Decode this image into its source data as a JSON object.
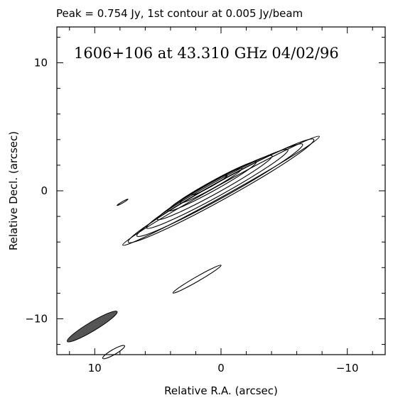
{
  "chart_data": {
    "type": "contour",
    "header": "Peak = 0.754 Jy, 1st contour at 0.005 Jy/beam",
    "title": "1606+106 at 43.310 GHz  04/02/96",
    "xlabel": "Relative R.A. (arcsec)",
    "ylabel": "Relative Decl. (arcsec)",
    "xlim": [
      13,
      -13
    ],
    "ylim": [
      -12.8,
      12.8
    ],
    "x_ticks": [
      10,
      0,
      -10
    ],
    "y_ticks": [
      10,
      0,
      -10
    ],
    "grid": false,
    "peak_jy": 0.754,
    "first_contour_jy_per_beam": 0.005,
    "contours": [
      {
        "kind": "source",
        "cx": 0,
        "cy": 0,
        "semi_major": 8.9,
        "semi_minor": 0.45,
        "angle_deg": 29
      },
      {
        "kind": "source",
        "cx": 0,
        "cy": 0,
        "semi_major": 8.4,
        "semi_minor": 0.68,
        "angle_deg": 29
      },
      {
        "kind": "source",
        "cx": 0.1,
        "cy": 0.05,
        "semi_major": 7.5,
        "semi_minor": 0.62,
        "angle_deg": 29
      },
      {
        "kind": "source",
        "cx": 0.3,
        "cy": 0.15,
        "semi_major": 6.4,
        "semi_minor": 0.55,
        "angle_deg": 29
      },
      {
        "kind": "source",
        "cx": 0.5,
        "cy": 0.25,
        "semi_major": 5.2,
        "semi_minor": 0.46,
        "angle_deg": 29
      },
      {
        "kind": "source",
        "cx": 0.7,
        "cy": 0.35,
        "semi_major": 4.0,
        "semi_minor": 0.36,
        "angle_deg": 29
      },
      {
        "kind": "source",
        "cx": 0.8,
        "cy": 0.4,
        "semi_major": 2.8,
        "semi_minor": 0.26,
        "angle_deg": 29
      },
      {
        "kind": "source",
        "cx": 0.9,
        "cy": 0.45,
        "semi_major": 1.6,
        "semi_minor": 0.16,
        "angle_deg": 29
      },
      {
        "kind": "feature",
        "cx": 1.9,
        "cy": -6.9,
        "semi_major": 2.2,
        "semi_minor": 0.18,
        "angle_deg": 30
      },
      {
        "kind": "feature",
        "cx": 7.8,
        "cy": -0.9,
        "semi_major": 0.5,
        "semi_minor": 0.05,
        "angle_deg": 30
      },
      {
        "kind": "feature",
        "cx": 8.5,
        "cy": -12.6,
        "semi_major": 1.0,
        "semi_minor": 0.2,
        "angle_deg": 30
      }
    ],
    "beam": {
      "cx": 10.2,
      "cy": -10.6,
      "semi_major": 2.3,
      "semi_minor": 0.35,
      "angle_deg": 31,
      "fill": "#555555"
    },
    "colors": {
      "contour": "#000000",
      "beam": "#555555",
      "frame": "#000000"
    }
  }
}
